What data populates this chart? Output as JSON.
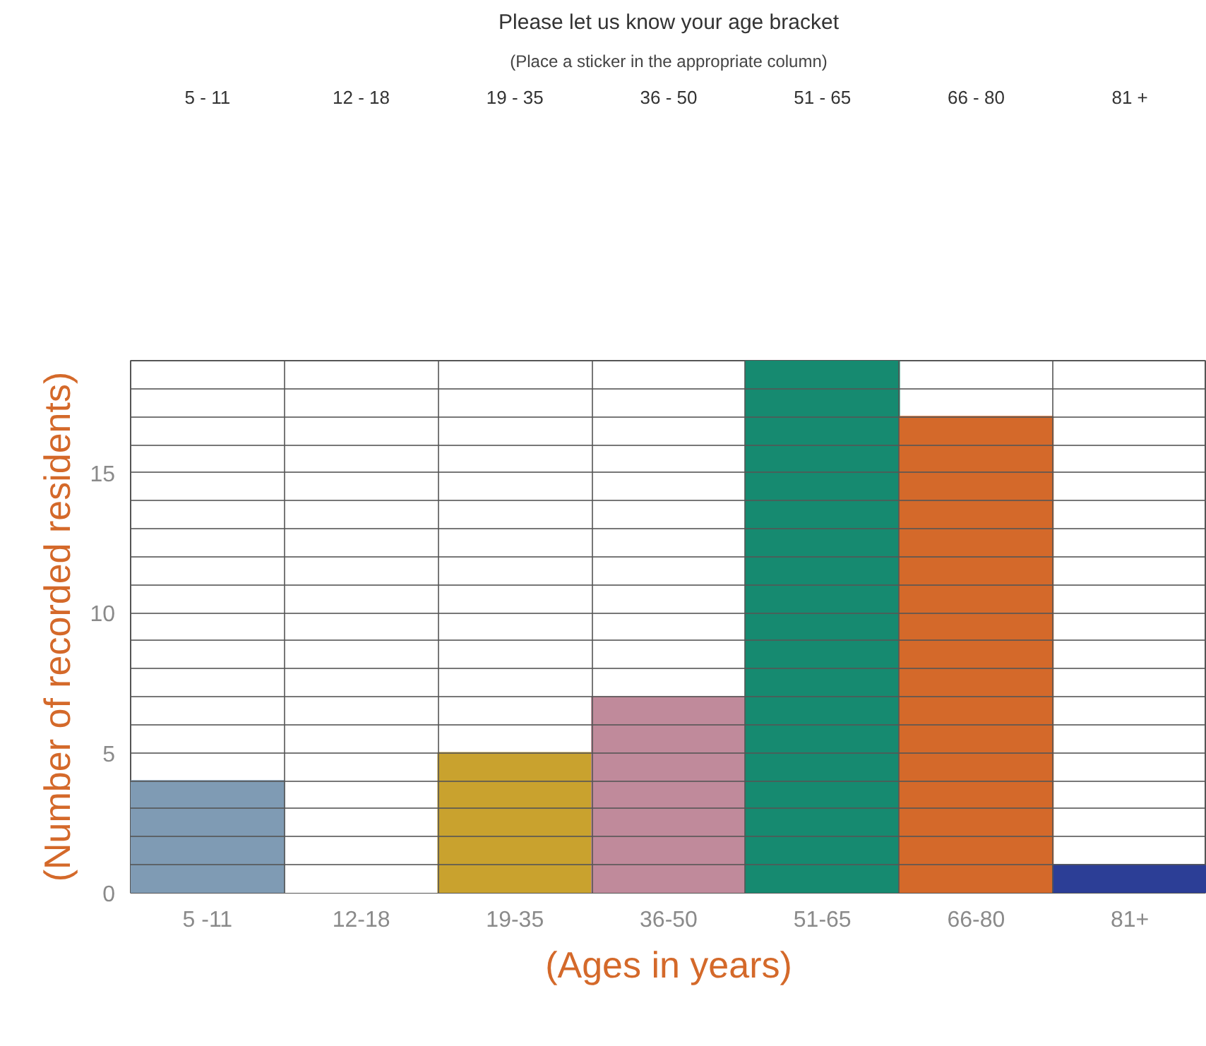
{
  "chart_data": {
    "type": "bar",
    "title": "Please let us know your age bracket",
    "subtitle": "(Place a sticker in the appropriate column)",
    "annotations": [
      "5 - 11",
      "12 - 18",
      "19 - 35",
      "36 - 50",
      "51 - 65",
      "66 - 80",
      "81 +"
    ],
    "xlabel": "(Ages in years)",
    "ylabel": "(Number of recorded residents)",
    "categories": [
      "5 -11",
      "12-18",
      "19-35",
      "36-50",
      "51-65",
      "66-80",
      "81+"
    ],
    "values": [
      4,
      0,
      5,
      7,
      19,
      17,
      1
    ],
    "colors": [
      "#7f9bb4",
      "#ffffff",
      "#c9a22e",
      "#c08a9b",
      "#168a70",
      "#d4692a",
      "#2c3e96"
    ],
    "ylim": [
      0,
      19
    ],
    "yticks": [
      0,
      {
        "value": 1,
        "label": null
      },
      {
        "value": 2,
        "label": null
      },
      {
        "value": 3,
        "label": null
      },
      {
        "value": 4,
        "label": null
      },
      5,
      {
        "value": 6,
        "label": null
      },
      {
        "value": 7,
        "label": null
      },
      {
        "value": 8,
        "label": null
      },
      {
        "value": 9,
        "label": null
      },
      10,
      {
        "value": 11,
        "label": null
      },
      {
        "value": 12,
        "label": null
      },
      {
        "value": 13,
        "label": null
      },
      {
        "value": 14,
        "label": null
      },
      15,
      {
        "value": 16,
        "label": null
      },
      {
        "value": 17,
        "label": null
      },
      {
        "value": 18,
        "label": null
      }
    ],
    "grid": true
  }
}
